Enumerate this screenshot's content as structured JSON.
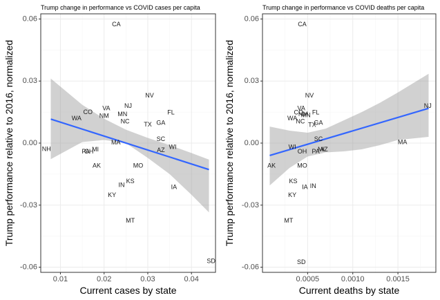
{
  "chart_data": [
    {
      "type": "scatter",
      "title": "Trump change in performance vs COVID cases per capita",
      "xlabel": "Current cases by state",
      "ylabel": "Trump performance relative to 2016, normalized",
      "xlim": [
        0.0055,
        0.0455
      ],
      "ylim": [
        -0.0625,
        0.0625
      ],
      "xticks": [
        0.01,
        0.02,
        0.03,
        0.04
      ],
      "xtick_labels": [
        "0.01",
        "0.02",
        "0.03",
        "0.04"
      ],
      "yticks": [
        -0.06,
        -0.03,
        0.0,
        0.03,
        0.06
      ],
      "ytick_labels": [
        "-0.06",
        "-0.03",
        "0.00",
        "0.03",
        "0.06"
      ],
      "points": [
        {
          "label": "CA",
          "x": 0.0228,
          "y": 0.0575
        },
        {
          "label": "NV",
          "x": 0.0304,
          "y": 0.023
        },
        {
          "label": "NJ",
          "x": 0.0255,
          "y": 0.018
        },
        {
          "label": "VA",
          "x": 0.0205,
          "y": 0.0168
        },
        {
          "label": "CO",
          "x": 0.0163,
          "y": 0.015
        },
        {
          "label": "FL",
          "x": 0.0353,
          "y": 0.0148
        },
        {
          "label": "MN",
          "x": 0.0242,
          "y": 0.014
        },
        {
          "label": "NM",
          "x": 0.02,
          "y": 0.0132
        },
        {
          "label": "WA",
          "x": 0.0137,
          "y": 0.012
        },
        {
          "label": "NC",
          "x": 0.0248,
          "y": 0.0105
        },
        {
          "label": "GA",
          "x": 0.033,
          "y": 0.0098
        },
        {
          "label": "TX",
          "x": 0.03,
          "y": 0.009
        },
        {
          "label": "SC",
          "x": 0.033,
          "y": 0.002
        },
        {
          "label": "MA",
          "x": 0.0227,
          "y": 0.0003
        },
        {
          "label": "WI",
          "x": 0.0357,
          "y": -0.0018
        },
        {
          "label": "AZ",
          "x": 0.033,
          "y": -0.0033
        },
        {
          "label": "NH",
          "x": 0.0068,
          "y": -0.0028
        },
        {
          "label": "PA",
          "x": 0.0158,
          "y": -0.004
        },
        {
          "label": "OH",
          "x": 0.0165,
          "y": -0.004
        },
        {
          "label": "MI",
          "x": 0.018,
          "y": -0.003
        },
        {
          "label": "AK",
          "x": 0.0183,
          "y": -0.0108
        },
        {
          "label": "MO",
          "x": 0.0278,
          "y": -0.0108
        },
        {
          "label": "KS",
          "x": 0.026,
          "y": -0.0183
        },
        {
          "label": "IN",
          "x": 0.024,
          "y": -0.0203
        },
        {
          "label": "IA",
          "x": 0.036,
          "y": -0.0213
        },
        {
          "label": "KY",
          "x": 0.0218,
          "y": -0.025
        },
        {
          "label": "MT",
          "x": 0.026,
          "y": -0.0375
        },
        {
          "label": "SD",
          "x": 0.0445,
          "y": -0.057
        }
      ],
      "fit_line": {
        "x": [
          0.0078,
          0.044
        ],
        "y": [
          0.0116,
          -0.0128
        ]
      },
      "ribbon": {
        "x": [
          0.0078,
          0.015,
          0.02,
          0.025,
          0.03,
          0.035,
          0.04,
          0.044
        ],
        "upper": [
          0.0312,
          0.0185,
          0.0118,
          0.0065,
          0.0025,
          -0.001,
          -0.0048,
          -0.008
        ],
        "lower": [
          -0.0078,
          0.0005,
          0.0015,
          0.0,
          -0.0072,
          -0.015,
          -0.025,
          -0.0335
        ]
      }
    },
    {
      "type": "scatter",
      "title": "Trump change in performance vs COVID deaths per capita",
      "xlabel": "Current deaths by state",
      "ylabel": "Trump performance relative to 2016, normalized",
      "xlim": [
        0.0,
        0.00192
      ],
      "ylim": [
        -0.0625,
        0.0625
      ],
      "xticks": [
        0.0005,
        0.001,
        0.0015
      ],
      "xtick_labels": [
        "0.0005",
        "0.0010",
        "0.0015"
      ],
      "yticks": [
        -0.06,
        -0.03,
        0.0,
        0.03,
        0.06
      ],
      "ytick_labels": [
        "-0.06",
        "-0.03",
        "0.00",
        "0.03",
        "0.06"
      ],
      "points": [
        {
          "label": "CA",
          "x": 0.00044,
          "y": 0.0575
        },
        {
          "label": "NV",
          "x": 0.00052,
          "y": 0.023
        },
        {
          "label": "NJ",
          "x": 0.00183,
          "y": 0.018
        },
        {
          "label": "VA",
          "x": 0.00043,
          "y": 0.0168
        },
        {
          "label": "CO",
          "x": 0.0004,
          "y": 0.0148
        },
        {
          "label": "NM",
          "x": 0.00045,
          "y": 0.014
        },
        {
          "label": "MN",
          "x": 0.00048,
          "y": 0.0135
        },
        {
          "label": "FL",
          "x": 0.00059,
          "y": 0.0148
        },
        {
          "label": "WA",
          "x": 0.00033,
          "y": 0.012
        },
        {
          "label": "NC",
          "x": 0.00042,
          "y": 0.0105
        },
        {
          "label": "GA",
          "x": 0.00062,
          "y": 0.0098
        },
        {
          "label": "TX",
          "x": 0.00055,
          "y": 0.0088
        },
        {
          "label": "SC",
          "x": 0.00062,
          "y": 0.002
        },
        {
          "label": "MA",
          "x": 0.00155,
          "y": 0.0005
        },
        {
          "label": "WI",
          "x": 0.00033,
          "y": -0.0018
        },
        {
          "label": "MI",
          "x": 0.00065,
          "y": -0.003
        },
        {
          "label": "AZ",
          "x": 0.00068,
          "y": -0.003
        },
        {
          "label": "PA",
          "x": 0.00059,
          "y": -0.004
        },
        {
          "label": "OH",
          "x": 0.00044,
          "y": -0.004
        },
        {
          "label": "AK",
          "x": 0.0001,
          "y": -0.0108
        },
        {
          "label": "MO",
          "x": 0.00044,
          "y": -0.0108
        },
        {
          "label": "KS",
          "x": 0.00034,
          "y": -0.0183
        },
        {
          "label": "IA",
          "x": 0.00047,
          "y": -0.0213
        },
        {
          "label": "IN",
          "x": 0.00056,
          "y": -0.0208
        },
        {
          "label": "KY",
          "x": 0.00033,
          "y": -0.025
        },
        {
          "label": "MT",
          "x": 0.00029,
          "y": -0.0375
        },
        {
          "label": "SD",
          "x": 0.00043,
          "y": -0.0575
        }
      ],
      "fit_line": {
        "x": [
          8e-05,
          0.00184
        ],
        "y": [
          -0.006,
          0.0168
        ]
      },
      "ribbon": {
        "x": [
          8e-05,
          0.0003,
          0.0005,
          0.0007,
          0.0009,
          0.0011,
          0.0013,
          0.0015,
          0.00184
        ],
        "upper": [
          0.008,
          0.006,
          0.005,
          0.007,
          0.011,
          0.015,
          0.0195,
          0.0245,
          0.0335
        ],
        "lower": [
          -0.0205,
          -0.012,
          -0.0065,
          -0.0045,
          -0.004,
          -0.003,
          -0.001,
          0.0015,
          0.003
        ]
      }
    }
  ]
}
